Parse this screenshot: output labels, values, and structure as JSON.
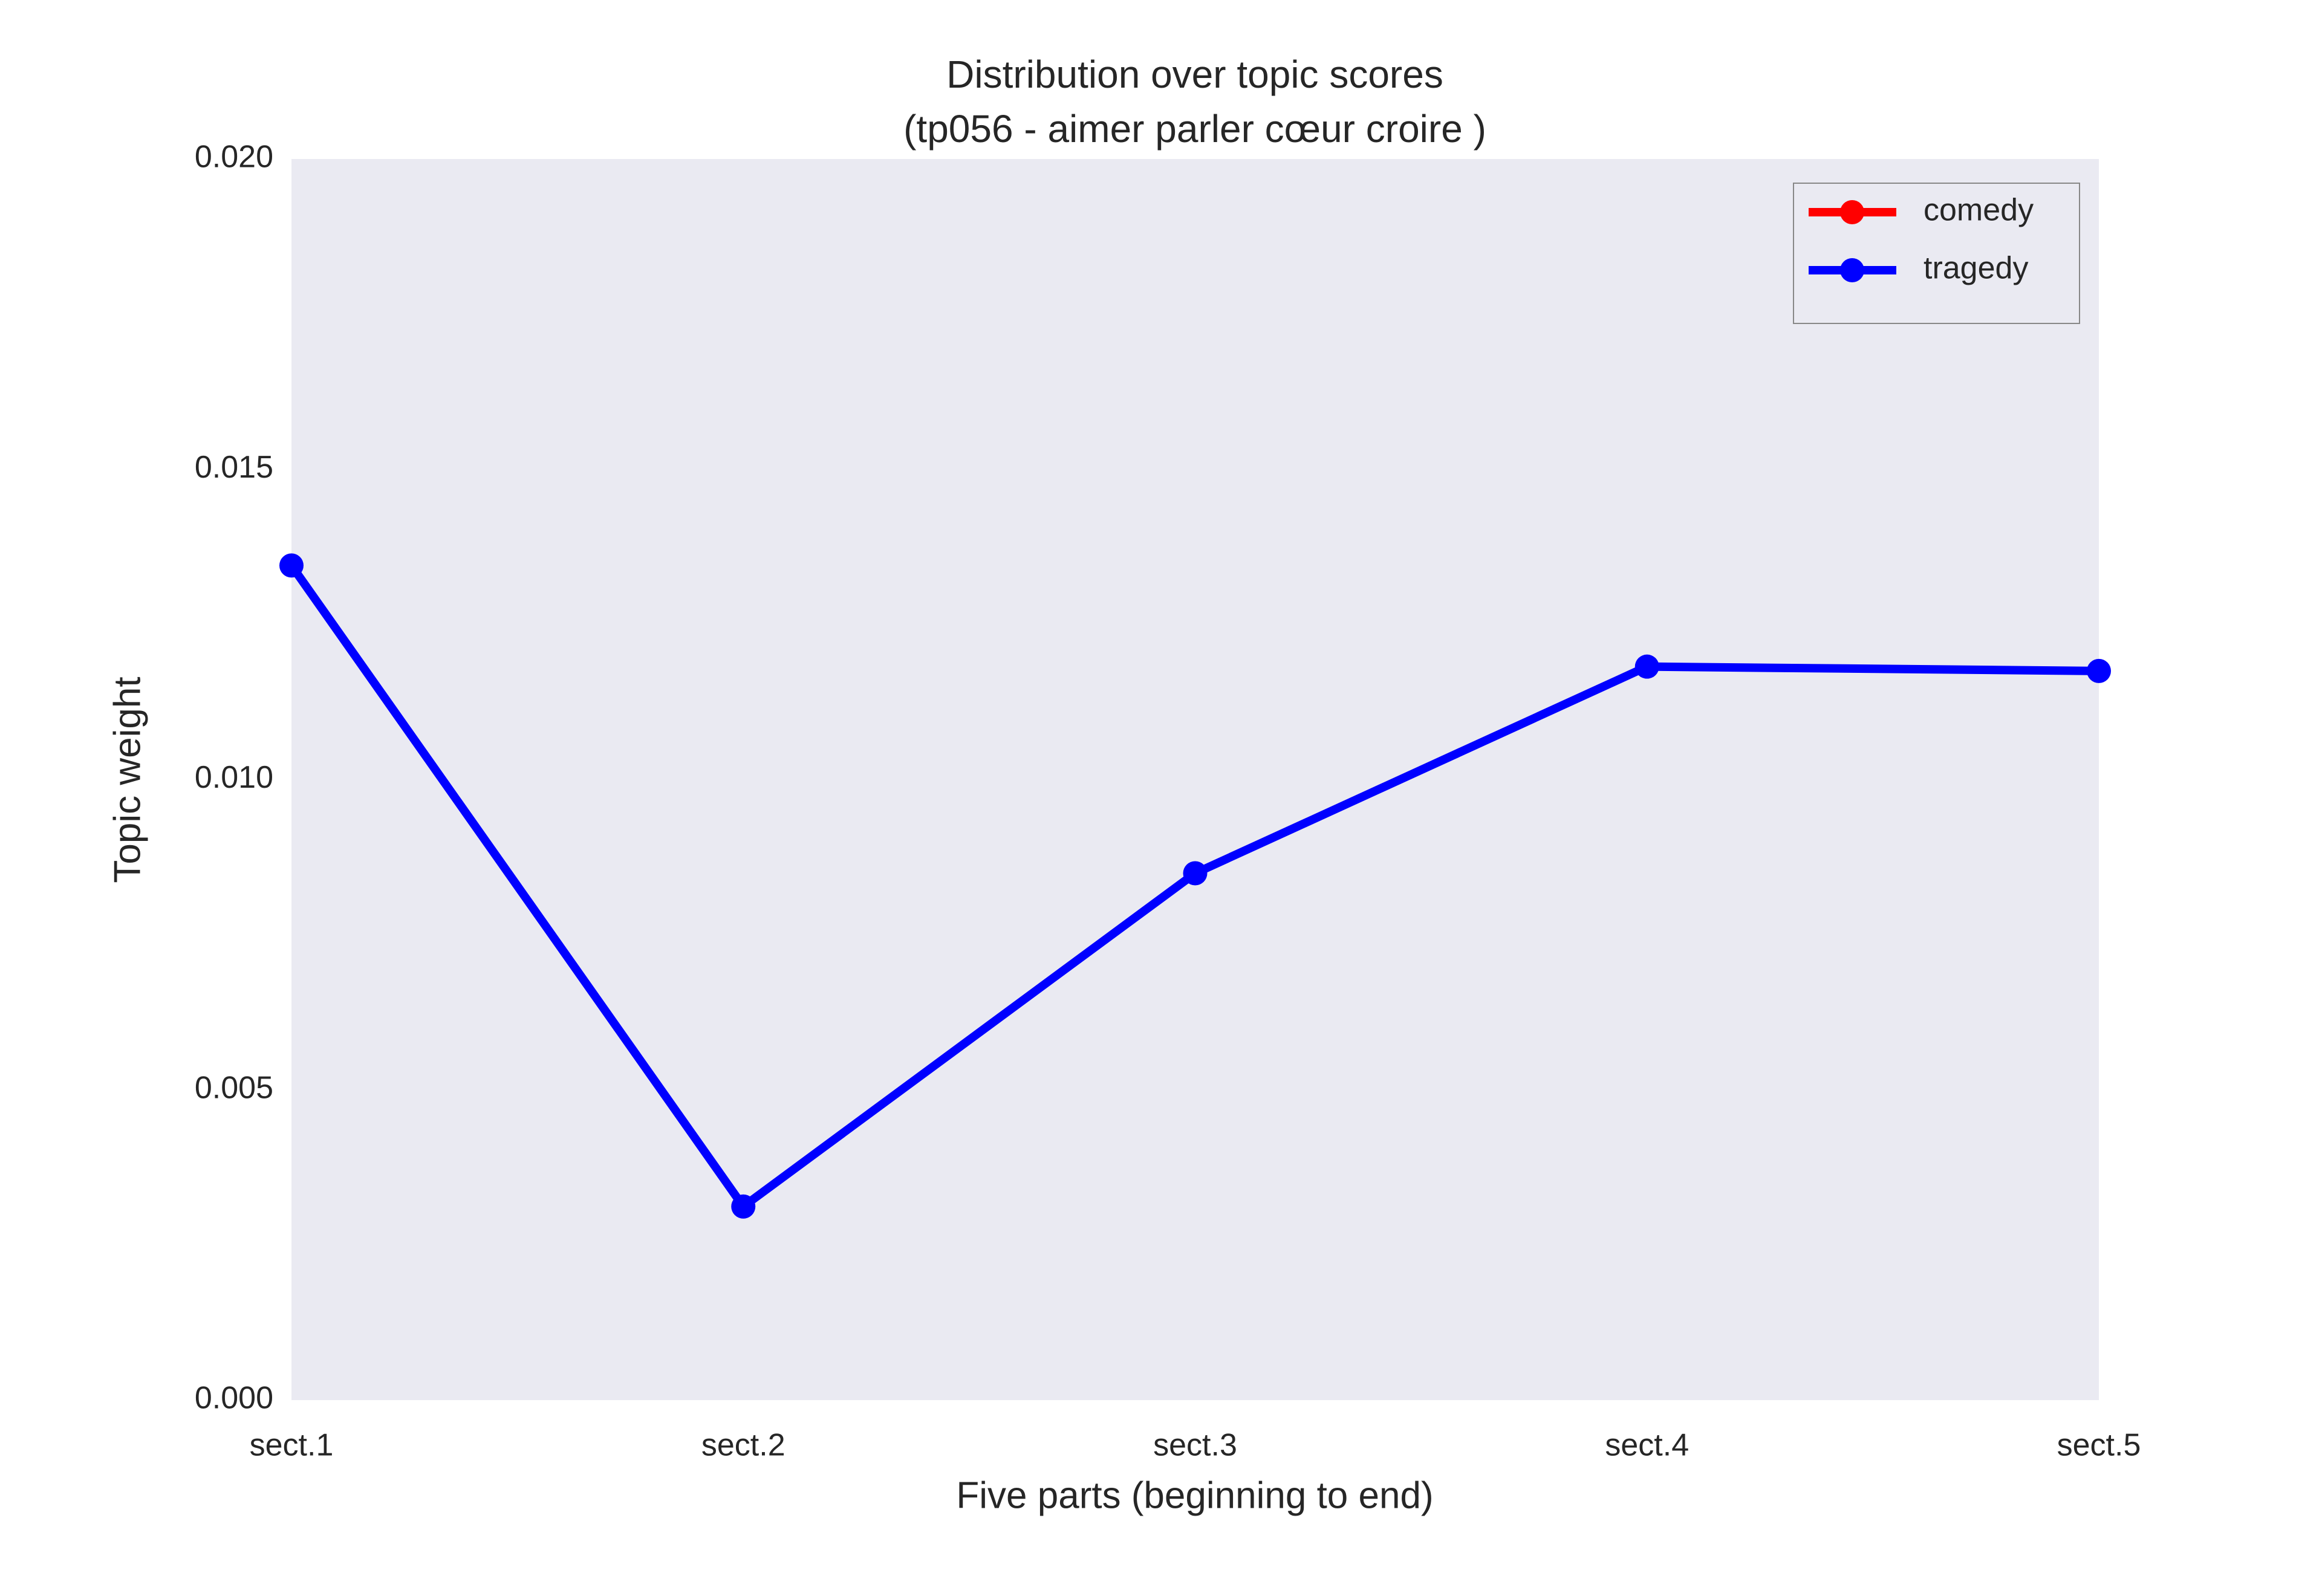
{
  "chart_data": {
    "type": "line",
    "title": "Distribution over topic scores",
    "subtitle": "(tp056 - aimer parler cœur croire )",
    "x_label": "Five parts (beginning to end)",
    "y_label": "Topic weight",
    "categories": [
      "sect.1",
      "sect.2",
      "sect.3",
      "sect.4",
      "sect.5"
    ],
    "series": [
      {
        "name": "comedy",
        "color": "#ff0000",
        "values": [
          null,
          null,
          null,
          null,
          null
        ]
      },
      {
        "name": "tragedy",
        "color": "#0000ff",
        "values": [
          0.01345,
          0.00312,
          0.00849,
          0.01182,
          0.01175
        ]
      }
    ],
    "ylim": [
      0,
      0.02
    ],
    "yticks": [
      {
        "value": 0,
        "label": "0.000"
      },
      {
        "value": 0.005,
        "label": "0.005"
      },
      {
        "value": 0.01,
        "label": "0.010"
      },
      {
        "value": 0.015,
        "label": "0.015"
      },
      {
        "value": 0.02,
        "label": "0.020"
      }
    ],
    "grid": false,
    "legend": "upper right"
  }
}
